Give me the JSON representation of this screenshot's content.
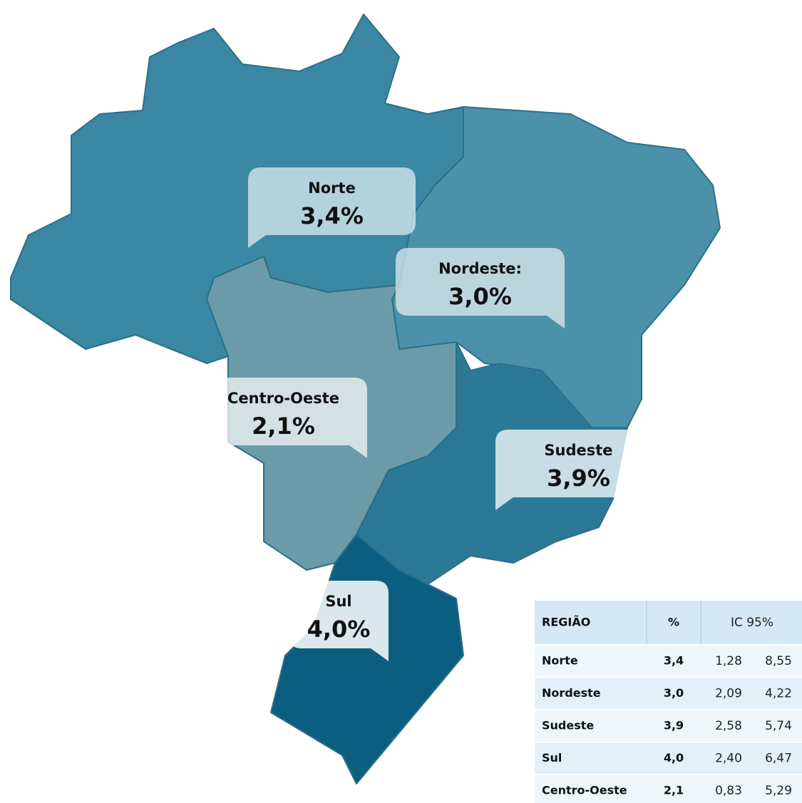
{
  "callouts": [
    {
      "label": "Norte",
      "value": "3,4%"
    },
    {
      "label": "Nordeste:",
      "value": "3,0%"
    },
    {
      "label": "Centro-Oeste",
      "value": "2,1%"
    },
    {
      "label": "Sudeste",
      "value": "3,9%"
    },
    {
      "label": "Sul",
      "value": "4,0%"
    }
  ],
  "table": {
    "header": [
      "REGIÃO",
      "%",
      "IC 95%"
    ],
    "rows": [
      [
        "Norte",
        "3,4",
        "1,28",
        "8,55"
      ],
      [
        "Nordeste",
        "3,0",
        "2,09",
        "4,22"
      ],
      [
        "Sudeste",
        "3,9",
        "2,58",
        "5,74"
      ],
      [
        "Sul",
        "4,0",
        "2,40",
        "6,47"
      ],
      [
        "Centro-Oeste",
        "2,1",
        "0,83",
        "5,29"
      ]
    ]
  }
}
